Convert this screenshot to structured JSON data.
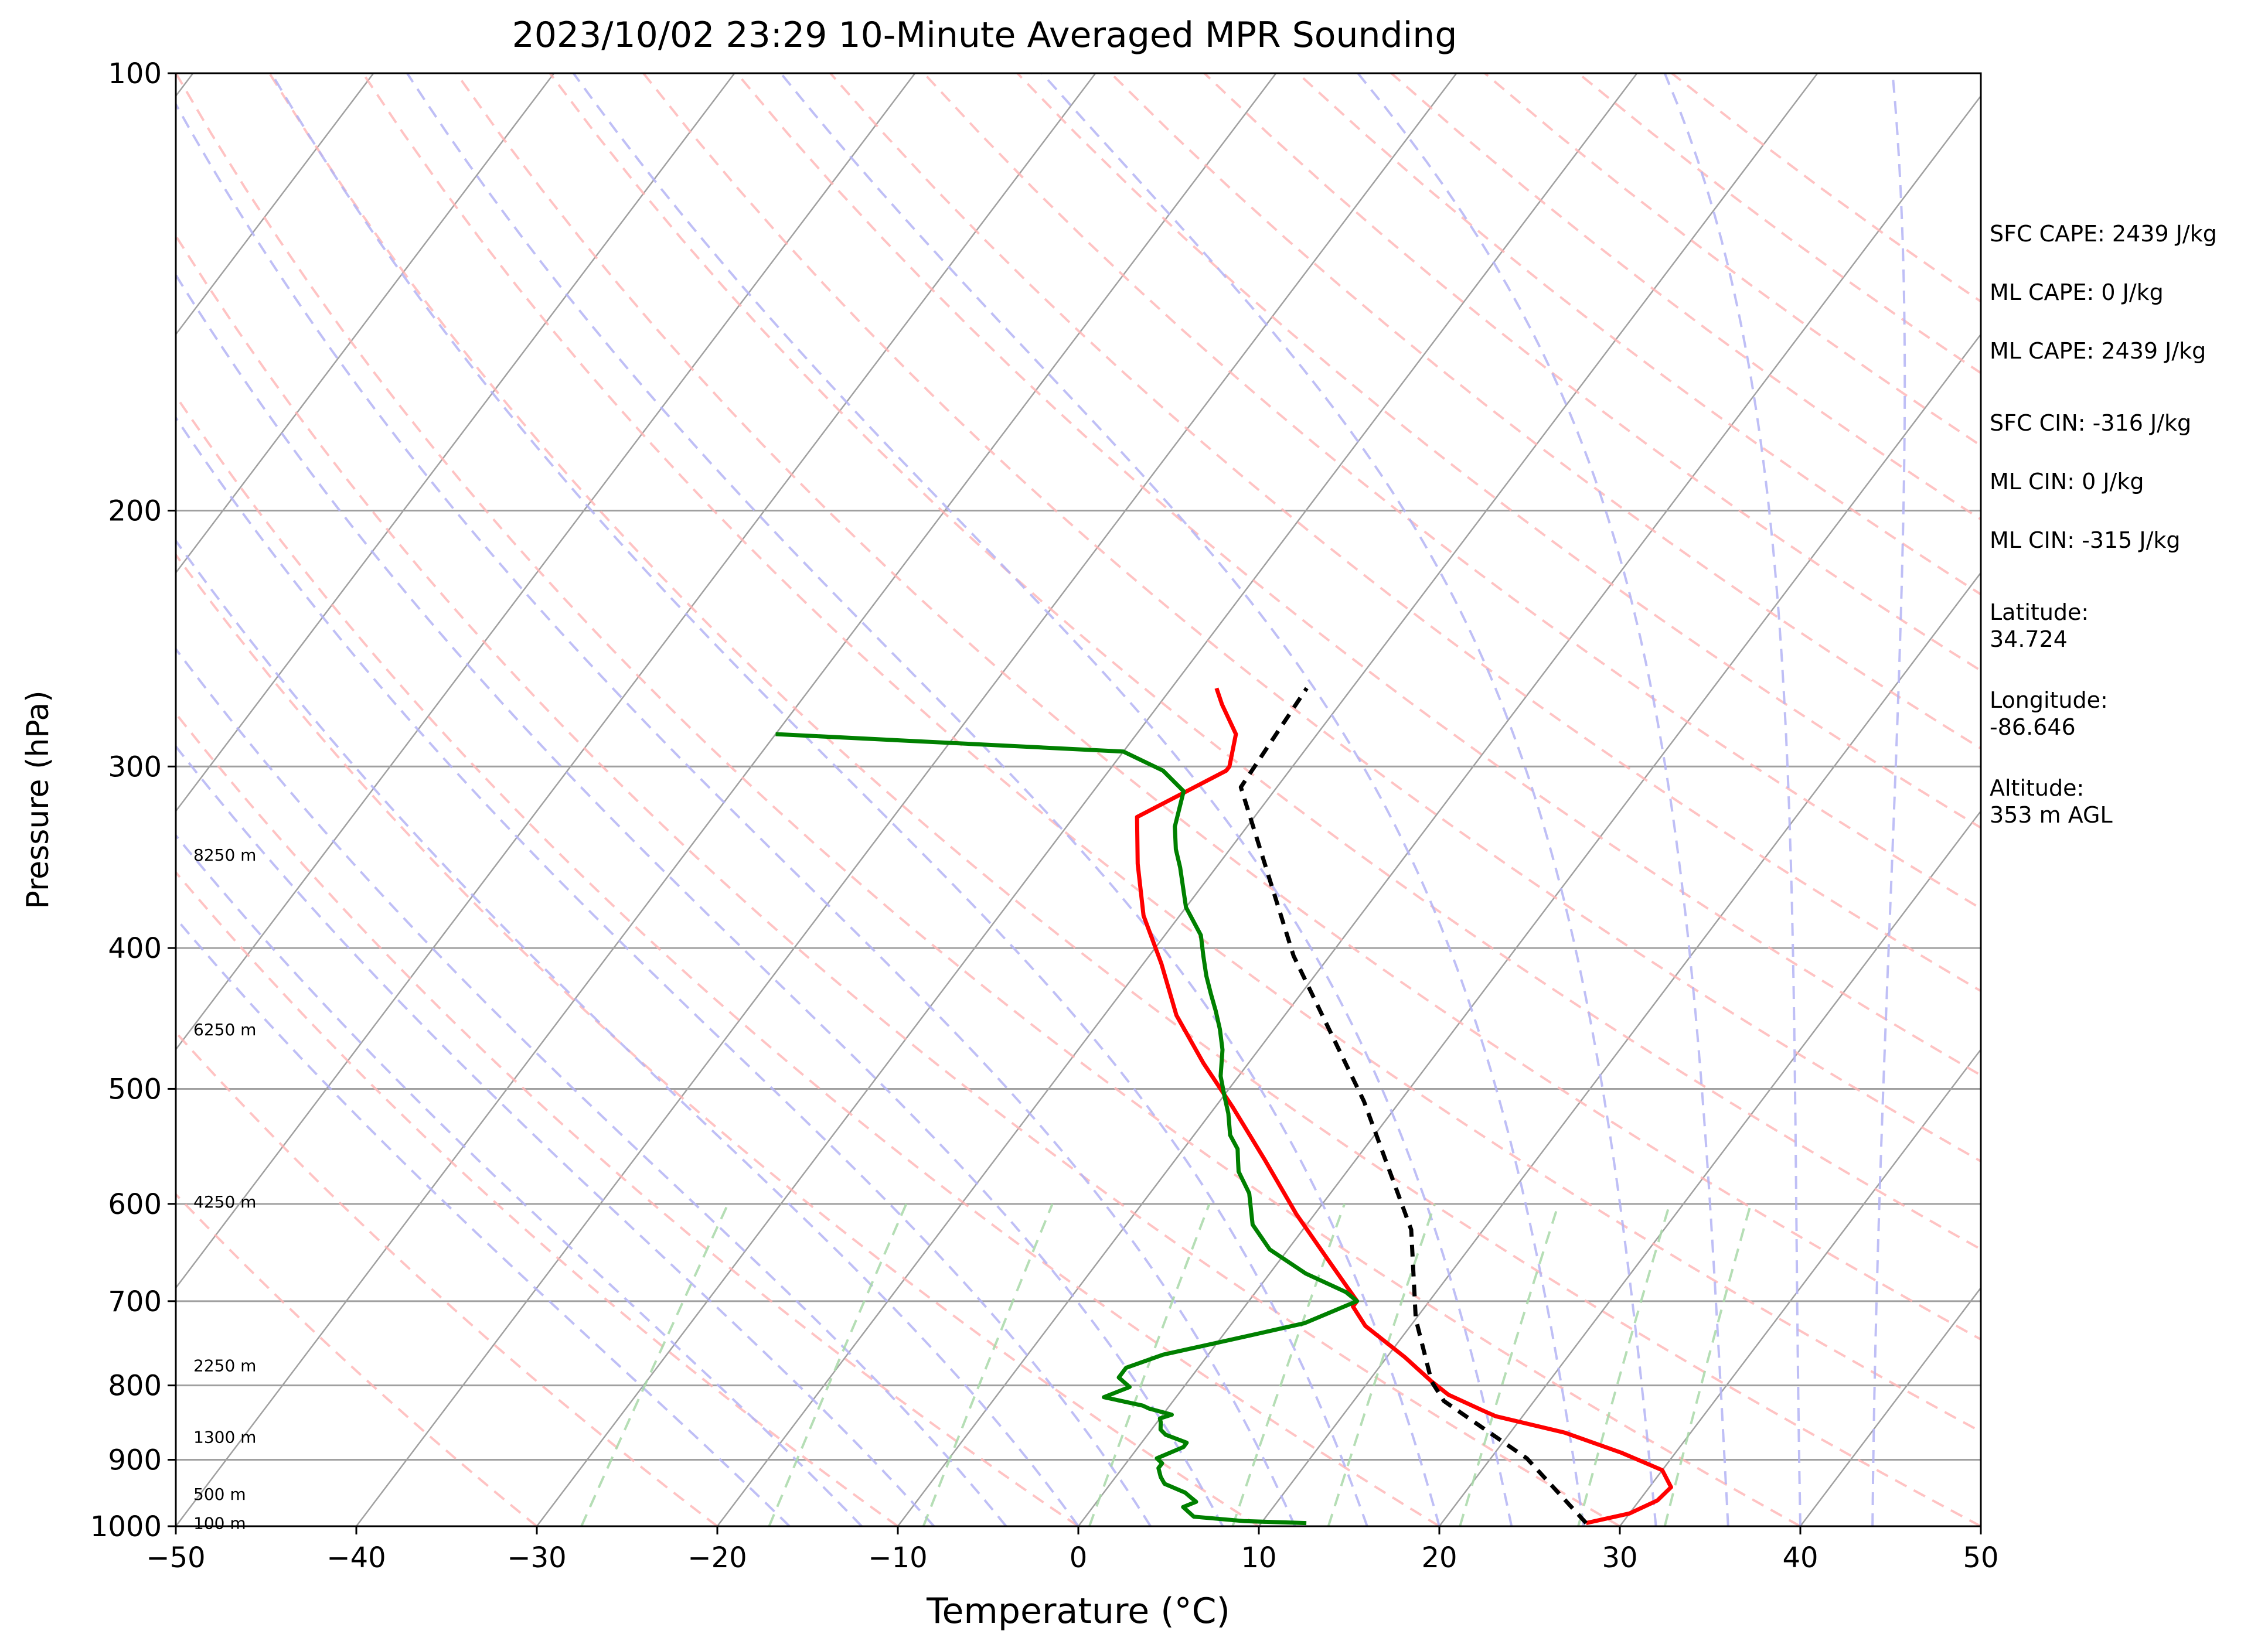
{
  "chart_data": {
    "type": "line",
    "title": "2023/10/02 23:29 10-Minute Averaged MPR Sounding",
    "xlabel": "Temperature (°C)",
    "ylabel": "Pressure (hPa)",
    "xlim": [
      -50,
      50
    ],
    "ylim": [
      1000,
      100
    ],
    "y_scale": "log",
    "grid": true,
    "x_ticks": [
      -50,
      -40,
      -30,
      -20,
      -10,
      0,
      10,
      20,
      30,
      40,
      50
    ],
    "x_tick_labels": [
      "−50",
      "−40",
      "−30",
      "−20",
      "−10",
      "0",
      "10",
      "20",
      "30",
      "40",
      "50"
    ],
    "y_ticks": [
      1000,
      900,
      800,
      700,
      600,
      500,
      400,
      300,
      200,
      100
    ],
    "y_tick_labels": [
      "1000",
      "900",
      "800",
      "700",
      "600",
      "500",
      "400",
      "300",
      "200",
      "100"
    ],
    "height_labels": [
      {
        "text": "100 m",
        "p": 995
      },
      {
        "text": "500 m",
        "p": 950
      },
      {
        "text": "1300 m",
        "p": 868
      },
      {
        "text": "2250 m",
        "p": 775
      },
      {
        "text": "4250 m",
        "p": 598
      },
      {
        "text": "6250 m",
        "p": 455
      },
      {
        "text": "8250 m",
        "p": 345
      }
    ],
    "series": [
      {
        "color": "#ff0000",
        "points": [
          [
            28,
            995
          ],
          [
            30,
            980
          ],
          [
            31,
            960
          ],
          [
            31.2,
            940
          ],
          [
            30,
            915
          ],
          [
            27,
            890
          ],
          [
            23,
            862
          ],
          [
            18.5,
            840
          ],
          [
            17.5,
            832
          ],
          [
            15,
            812
          ],
          [
            13.5,
            795
          ],
          [
            11,
            765
          ],
          [
            7.5,
            728
          ],
          [
            6,
            706
          ],
          [
            6,
            700
          ],
          [
            3,
            660
          ],
          [
            -1,
            610
          ],
          [
            -5,
            560
          ],
          [
            -9,
            515
          ],
          [
            -12.5,
            480
          ],
          [
            -16,
            445
          ],
          [
            -19,
            410
          ],
          [
            -22,
            380
          ],
          [
            -24.5,
            350
          ],
          [
            -26.5,
            325
          ],
          [
            -23.5,
            302
          ],
          [
            -23.5,
            300
          ],
          [
            -24.5,
            285
          ],
          [
            -26.5,
            272
          ],
          [
            -27.5,
            265
          ]
        ]
      },
      {
        "color": "#008000",
        "points": [
          [
            12.5,
            995
          ],
          [
            9,
            992
          ],
          [
            6,
            985
          ],
          [
            5,
            970
          ],
          [
            5.5,
            962
          ],
          [
            5,
            955
          ],
          [
            4.5,
            948
          ],
          [
            3,
            935
          ],
          [
            2.5,
            925
          ],
          [
            2,
            912
          ],
          [
            2,
            905
          ],
          [
            1.5,
            898
          ],
          [
            2,
            890
          ],
          [
            2.5,
            882
          ],
          [
            2.5,
            876
          ],
          [
            1,
            865
          ],
          [
            0.5,
            858
          ],
          [
            0.2,
            848
          ],
          [
            0,
            843
          ],
          [
            0.5,
            838
          ],
          [
            -1,
            830
          ],
          [
            -1.5,
            826
          ],
          [
            -4,
            815
          ],
          [
            -3,
            802
          ],
          [
            -4,
            790
          ],
          [
            -4,
            778
          ],
          [
            -2.5,
            762
          ],
          [
            1,
            742
          ],
          [
            4,
            725
          ],
          [
            6,
            700
          ],
          [
            5,
            690
          ],
          [
            2,
            670
          ],
          [
            -1,
            645
          ],
          [
            -3,
            620
          ],
          [
            -4.5,
            590
          ],
          [
            -6,
            570
          ],
          [
            -6.5,
            560
          ],
          [
            -7,
            550
          ],
          [
            -8,
            538
          ],
          [
            -9,
            520
          ],
          [
            -10,
            505
          ],
          [
            -11,
            490
          ],
          [
            -12,
            470
          ],
          [
            -13,
            455
          ],
          [
            -14,
            442
          ],
          [
            -15,
            430
          ],
          [
            -16,
            418
          ],
          [
            -17,
            405
          ],
          [
            -18,
            392
          ],
          [
            -20,
            375
          ],
          [
            -22,
            352
          ],
          [
            -23,
            342
          ],
          [
            -24,
            330
          ],
          [
            -25,
            312
          ],
          [
            -27,
            302
          ],
          [
            -30,
            293
          ],
          [
            -50,
            285
          ]
        ]
      },
      {
        "color": "#000000",
        "dashed": true,
        "points": [
          [
            28,
            995
          ],
          [
            22,
            898
          ],
          [
            15,
            820
          ],
          [
            13.5,
            795
          ],
          [
            10,
            720
          ],
          [
            6,
            625
          ],
          [
            -2,
            510
          ],
          [
            -12,
            405
          ],
          [
            -22,
            310
          ],
          [
            -22.5,
            265
          ]
        ]
      }
    ],
    "annotations": [
      "SFC CAPE: 2439 J/kg",
      "ML CAPE: 0 J/kg",
      "ML CAPE: 2439 J/kg",
      "SFC CIN: -316 J/kg",
      "ML CIN: 0 J/kg",
      "ML CIN: -315 J/kg"
    ],
    "location": {
      "latitude_label": "Latitude:",
      "latitude_value": "34.724",
      "longitude_label": "Longitude:",
      "longitude_value": "-86.646",
      "altitude_label": "Altitude:",
      "altitude_value": "353 m AGL"
    },
    "colors": {
      "temperature": "#ff0000",
      "dewpoint": "#008000",
      "parcel": "#000000",
      "isotherms": "#a0a0a0",
      "dry_adiabats": "#ffb4b4",
      "moist_adiabats": "#b4b4f5",
      "mixing_ratio": "#a8d8a8"
    }
  }
}
